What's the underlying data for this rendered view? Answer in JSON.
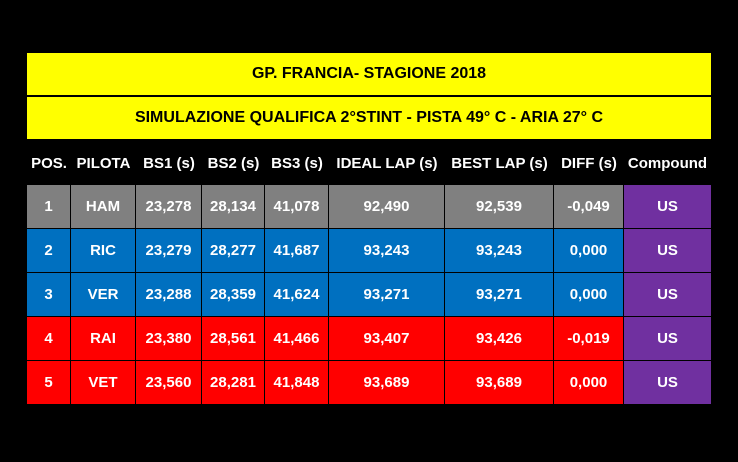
{
  "title": "GP. FRANCIA- STAGIONE 2018",
  "subtitle": "SIMULAZIONE QUALIFICA 2°STINT - PISTA 49° C  - ARIA 27° C",
  "headers": [
    "POS.",
    "PILOTA",
    "BS1 (s)",
    "BS2 (s)",
    "BS3 (s)",
    "IDEAL LAP (s)",
    "BEST LAP (s)",
    "DIFF (s)",
    "Compound"
  ],
  "rows": [
    {
      "cells": [
        "1",
        "HAM",
        "23,278",
        "28,134",
        "41,078",
        "92,490",
        "92,539",
        "-0,049",
        "US"
      ],
      "color": "#808080"
    },
    {
      "cells": [
        "2",
        "RIC",
        "23,279",
        "28,277",
        "41,687",
        "93,243",
        "93,243",
        "0,000",
        "US"
      ],
      "color": "#0070c0"
    },
    {
      "cells": [
        "3",
        "VER",
        "23,288",
        "28,359",
        "41,624",
        "93,271",
        "93,271",
        "0,000",
        "US"
      ],
      "color": "#0070c0"
    },
    {
      "cells": [
        "4",
        "RAI",
        "23,380",
        "28,561",
        "41,466",
        "93,407",
        "93,426",
        "-0,019",
        "US"
      ],
      "color": "#ff0000"
    },
    {
      "cells": [
        "5",
        "VET",
        "23,560",
        "28,281",
        "41,848",
        "93,689",
        "93,689",
        "0,000",
        "US"
      ],
      "color": "#ff0000"
    }
  ],
  "colors": {
    "title_bg": "#ffff00",
    "compound_bg": "#7030a0",
    "background": "#000000"
  }
}
